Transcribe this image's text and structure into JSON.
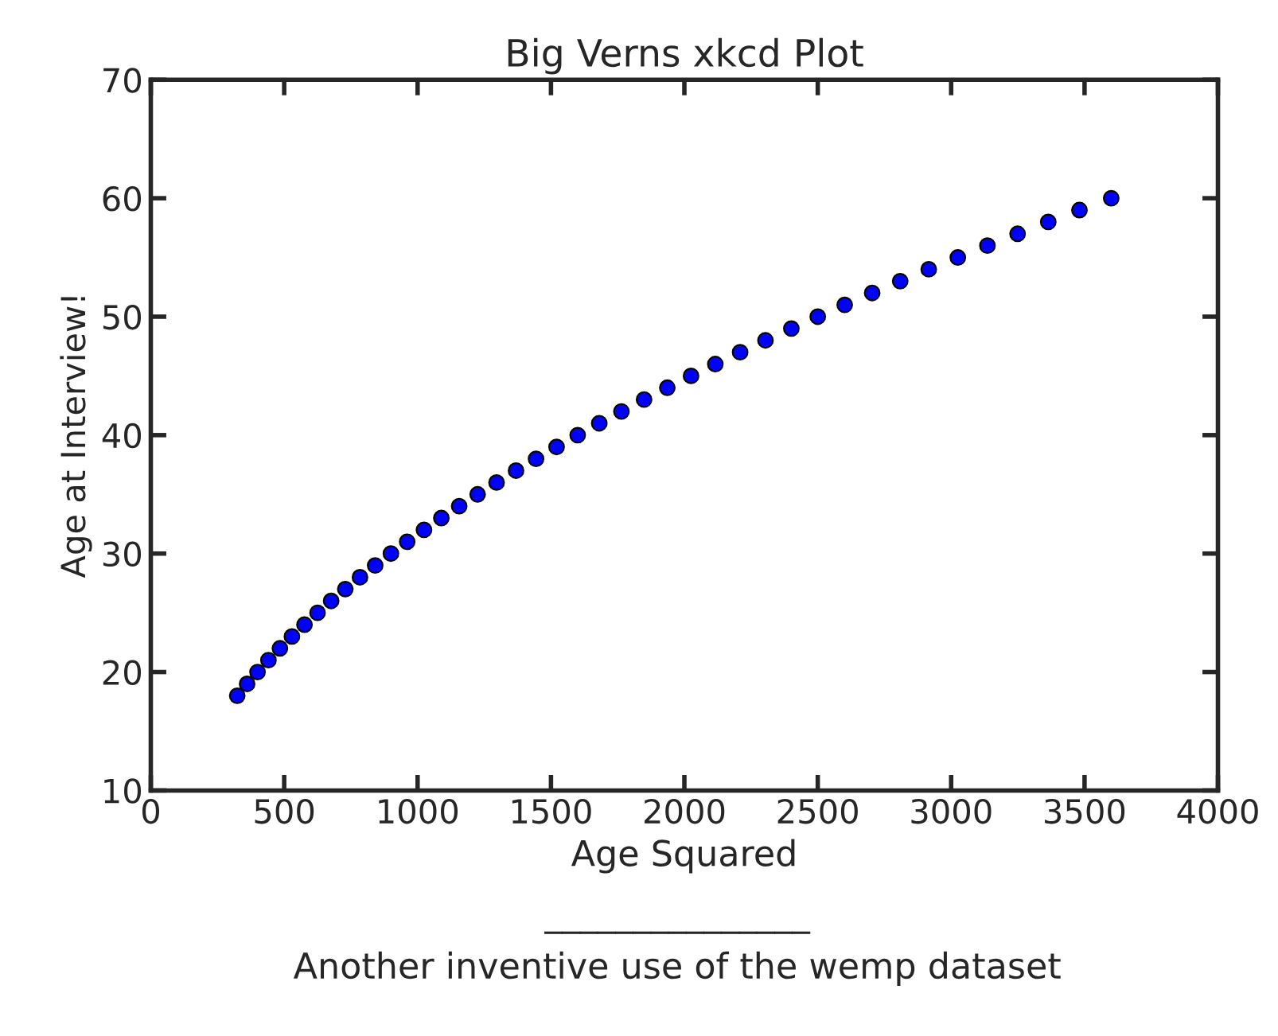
{
  "chart_data": {
    "type": "scatter",
    "title": "Big Verns xkcd Plot",
    "xlabel": "Age Squared",
    "ylabel": "Age at Interview!",
    "annotations": [
      "_______________",
      "Another inventive use of the wemp dataset"
    ],
    "x": [
      324,
      361,
      400,
      441,
      484,
      529,
      576,
      625,
      676,
      729,
      784,
      841,
      900,
      961,
      1024,
      1089,
      1156,
      1225,
      1296,
      1369,
      1444,
      1521,
      1600,
      1681,
      1764,
      1849,
      1936,
      2025,
      2116,
      2209,
      2304,
      2401,
      2500,
      2601,
      2704,
      2809,
      2916,
      3025,
      3136,
      3249,
      3364,
      3481,
      3600
    ],
    "series": [
      {
        "color": "#0000ff",
        "values": [
          18,
          19,
          20,
          21,
          22,
          23,
          24,
          25,
          26,
          27,
          28,
          29,
          30,
          31,
          32,
          33,
          34,
          35,
          36,
          37,
          38,
          39,
          40,
          41,
          42,
          43,
          44,
          45,
          46,
          47,
          48,
          49,
          50,
          51,
          52,
          53,
          54,
          55,
          56,
          57,
          58,
          59,
          60
        ]
      }
    ],
    "marker": "circle",
    "grid": false,
    "legend": false,
    "xlim": [
      0,
      4000
    ],
    "xticks": [
      0,
      500,
      1000,
      1500,
      2000,
      2500,
      3000,
      3500,
      4000
    ],
    "ylim": [
      10,
      70
    ],
    "yticks": [
      10,
      20,
      30,
      40,
      50,
      60,
      70
    ]
  }
}
